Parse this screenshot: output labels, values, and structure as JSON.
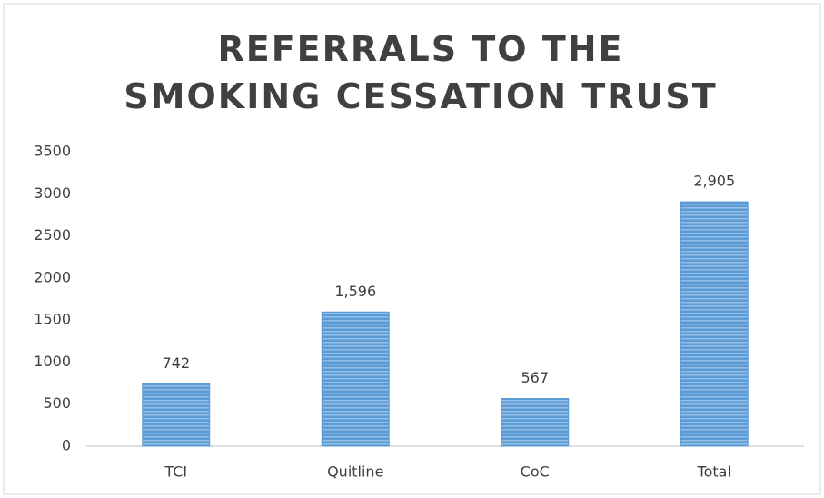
{
  "chart_data": {
    "type": "bar",
    "title": "REFERRALS TO THE SMOKING CESSATION TRUST",
    "categories": [
      "TCI",
      "Quitline",
      "CoC",
      "Total"
    ],
    "values": [
      742,
      1596,
      567,
      2905
    ],
    "value_labels": [
      "742",
      "1,596",
      "567",
      "2,905"
    ],
    "color": "#5b9bd5",
    "ylim": [
      0,
      3500
    ],
    "yticks": [
      0,
      500,
      1000,
      1500,
      2000,
      2500,
      3000,
      3500
    ],
    "grid": false
  }
}
